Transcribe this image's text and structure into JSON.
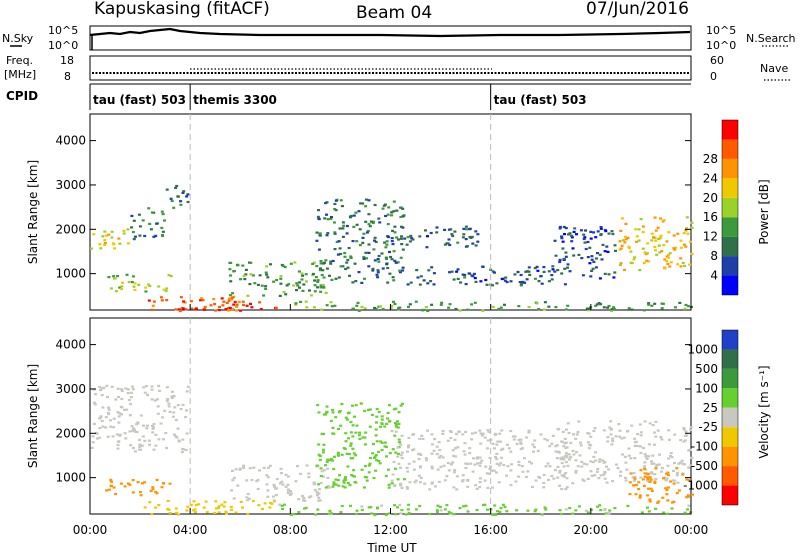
{
  "header": {
    "title": "Kapuskasing (fitACF)",
    "beam": "Beam 04",
    "date": "07/Jun/2016"
  },
  "top_panels": {
    "nsky": {
      "label": "N.Sky",
      "ticks": [
        "10^5",
        "10^0"
      ]
    },
    "nsearch": {
      "label": "N.Search",
      "ticks": [
        "10^5",
        "10^0"
      ]
    },
    "freq": {
      "label_line1": "Freq.",
      "label_line2": "[MHz]",
      "ticks": [
        "18",
        "8"
      ]
    },
    "nave": {
      "label": "Nave",
      "ticks": [
        "60",
        "0"
      ]
    },
    "cpid": {
      "label": "CPID"
    }
  },
  "cpid_modes": [
    {
      "label": "tau (fast) 503",
      "start_hour": 0
    },
    {
      "label": "themis 3300",
      "start_hour": 4
    },
    {
      "label": "tau (fast) 503",
      "start_hour": 16
    }
  ],
  "colors": {
    "power_scale": [
      "#0000ff",
      "#1c3fa8",
      "#2f6f4a",
      "#3c9a3c",
      "#9bd22a",
      "#f0c800",
      "#ff9400",
      "#ff5a00",
      "#ff0000"
    ],
    "velocity_scale": [
      "#2040c8",
      "#2f6f4a",
      "#3c9a3c",
      "#66d030",
      "#c8c8c0",
      "#f0c800",
      "#ff9400",
      "#ff5a00",
      "#ff0000"
    ],
    "gray": "#c8c8c0"
  },
  "chart_data": [
    {
      "type": "heatmap",
      "name": "power",
      "ylabel": "Slant Range [km]",
      "ylim": [
        180,
        4600
      ],
      "yticks": [
        "1000",
        "2000",
        "3000",
        "4000"
      ],
      "colorbar": {
        "label": "Power [dB]",
        "range": [
          0,
          32
        ],
        "ticks": [
          "4",
          "8",
          "12",
          "16",
          "20",
          "24",
          "28"
        ]
      },
      "bands": [
        {
          "t0": 0.0,
          "t1": 1.6,
          "r0": 1550,
          "r1": 2050,
          "value": 18
        },
        {
          "t0": 1.6,
          "t1": 3.0,
          "r0": 1800,
          "r1": 2500,
          "value": 10
        },
        {
          "t0": 3.0,
          "t1": 3.9,
          "r0": 2500,
          "r1": 3100,
          "value": 8
        },
        {
          "t0": 0.6,
          "t1": 3.2,
          "r0": 600,
          "r1": 1000,
          "value": 15
        },
        {
          "t0": 2.0,
          "t1": 6.0,
          "r0": 180,
          "r1": 500,
          "value": 26
        },
        {
          "t0": 3.5,
          "t1": 7.5,
          "r0": 180,
          "r1": 420,
          "value": 30
        },
        {
          "t0": 7.5,
          "t1": 13.0,
          "r0": 180,
          "r1": 400,
          "value": 14
        },
        {
          "t0": 13.0,
          "t1": 24.0,
          "r0": 180,
          "r1": 380,
          "value": 12
        },
        {
          "t0": 5.5,
          "t1": 9.5,
          "r0": 500,
          "r1": 1300,
          "value": 12
        },
        {
          "t0": 9.0,
          "t1": 12.5,
          "r0": 800,
          "r1": 2700,
          "value": 9
        },
        {
          "t0": 12.0,
          "t1": 15.5,
          "r0": 1600,
          "r1": 2100,
          "value": 7
        },
        {
          "t0": 12.5,
          "t1": 19.0,
          "r0": 750,
          "r1": 1200,
          "value": 7
        },
        {
          "t0": 18.5,
          "t1": 21.0,
          "r0": 900,
          "r1": 2100,
          "value": 6
        },
        {
          "t0": 21.0,
          "t1": 24.0,
          "r0": 1100,
          "r1": 2300,
          "value": 20
        }
      ]
    },
    {
      "type": "heatmap",
      "name": "velocity",
      "xlabel": "Time UT",
      "ylabel": "Slant Range [km]",
      "ylim": [
        180,
        4600
      ],
      "yticks": [
        "1000",
        "2000",
        "3000",
        "4000"
      ],
      "xticks": [
        "00:00",
        "04:00",
        "08:00",
        "12:00",
        "16:00",
        "20:00",
        "00:00"
      ],
      "x_hours": [
        0,
        4,
        8,
        12,
        16,
        20,
        24
      ],
      "colorbar": {
        "label": "Velocity [m s⁻¹]",
        "ticks": [
          "1000",
          "500",
          "100",
          "25",
          "-25",
          "-100",
          "-500",
          "-1000"
        ]
      },
      "bands": [
        {
          "t0": 0.0,
          "t1": 3.9,
          "r0": 1600,
          "r1": 3100,
          "value": 0
        },
        {
          "t0": 0.6,
          "t1": 3.2,
          "r0": 600,
          "r1": 1000,
          "value": -150
        },
        {
          "t0": 2.0,
          "t1": 7.5,
          "r0": 180,
          "r1": 500,
          "value": -80
        },
        {
          "t0": 5.5,
          "t1": 9.5,
          "r0": 500,
          "r1": 1300,
          "value": 0
        },
        {
          "t0": 9.0,
          "t1": 12.5,
          "r0": 800,
          "r1": 2700,
          "value": 60
        },
        {
          "t0": 12.0,
          "t1": 19.0,
          "r0": 750,
          "r1": 2100,
          "value": 0
        },
        {
          "t0": 7.5,
          "t1": 24.0,
          "r0": 180,
          "r1": 420,
          "value": 40
        },
        {
          "t0": 18.5,
          "t1": 24.0,
          "r0": 900,
          "r1": 2300,
          "value": 0
        },
        {
          "t0": 21.5,
          "t1": 24.0,
          "r0": 450,
          "r1": 1300,
          "value": -200
        }
      ]
    }
  ]
}
